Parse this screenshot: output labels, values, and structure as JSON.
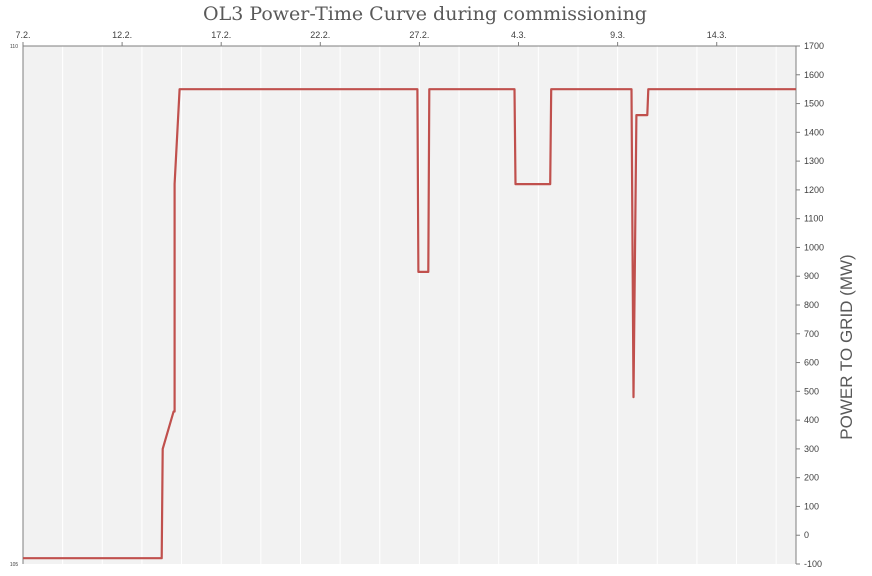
{
  "chart_data": {
    "type": "line",
    "title": "OL3 Power-Time Curve during commissioning",
    "xlabel": "",
    "ylabel": "POWER TO GRID (MW)",
    "x_tick_labels": [
      "7.2.",
      "12.2.",
      "17.2.",
      "22.2.",
      "27.2.",
      "4.3.",
      "9.3.",
      "14.3."
    ],
    "x_tick_days": [
      0,
      5,
      10,
      15,
      20,
      25,
      30,
      35
    ],
    "xlim_days": [
      0,
      39
    ],
    "ylim": [
      -100,
      1700
    ],
    "y_ticks": [
      -100,
      0,
      100,
      200,
      300,
      400,
      500,
      600,
      700,
      800,
      900,
      1000,
      1100,
      1200,
      1300,
      1400,
      1500,
      1600,
      1700
    ],
    "left_axis_ticks": [
      "110",
      "105"
    ],
    "grid": "vertical",
    "series": [
      {
        "color": "#c0504d",
        "x_days": [
          0,
          7,
          7.05,
          7.6,
          7.65,
          7.65,
          7.9,
          8.0,
          19.9,
          19.95,
          20.45,
          20.5,
          24.8,
          24.85,
          26.6,
          26.65,
          30.7,
          30.8,
          30.95,
          31.05,
          31.5,
          31.55,
          39
        ],
        "values": [
          -80,
          -80,
          300,
          430,
          430,
          1220,
          1550,
          1550,
          1550,
          915,
          915,
          1550,
          1550,
          1220,
          1220,
          1550,
          1550,
          480,
          1460,
          1460,
          1460,
          1550,
          1550
        ]
      }
    ]
  }
}
